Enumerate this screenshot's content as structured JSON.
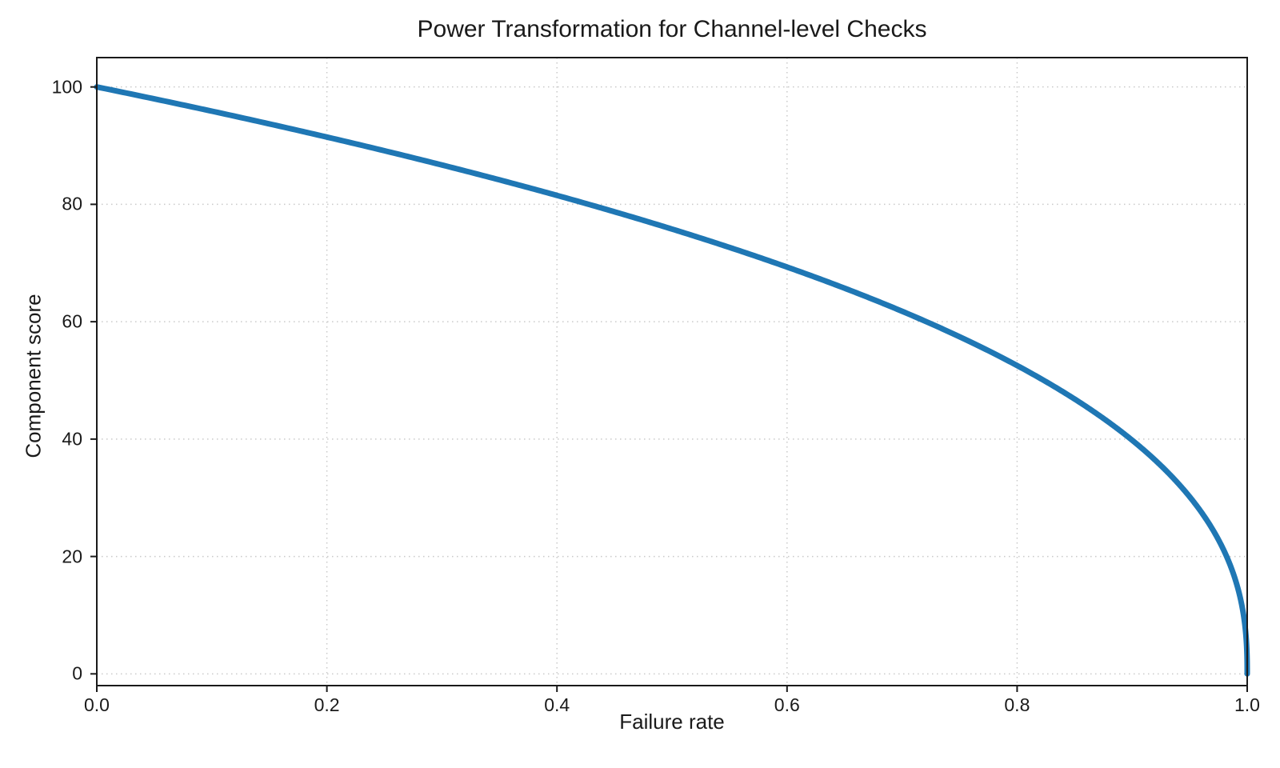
{
  "chart": {
    "title": "Power Transformation for Channel-level Checks",
    "xlabel": "Failure rate",
    "ylabel": "Component score"
  },
  "chart_data": {
    "type": "line",
    "title": "Power Transformation for Channel-level Checks",
    "xlabel": "Failure rate",
    "ylabel": "Component score",
    "xlim": [
      0,
      1
    ],
    "ylim": [
      -2,
      105
    ],
    "x_ticks": [
      "0.0",
      "0.2",
      "0.4",
      "0.6",
      "0.8",
      "1.0"
    ],
    "x_tick_values": [
      0,
      0.2,
      0.4,
      0.6,
      0.8,
      1.0
    ],
    "y_ticks": [
      "0",
      "20",
      "40",
      "60",
      "80",
      "100"
    ],
    "y_tick_values": [
      0,
      20,
      40,
      60,
      80,
      100
    ],
    "grid": "dotted",
    "legend_position": "none",
    "colors": {
      "line": "#1f77b4",
      "grid": "#c9c9c9",
      "spine": "#1a1a1a",
      "text": "#1a1a1a",
      "background": "#ffffff"
    },
    "series": [
      {
        "name": "component-score-curve",
        "color": "#1f77b4",
        "line_width": 7,
        "formula": "y = 100 * (1 - x)^0.4",
        "amplitude": 100,
        "power": 0.4,
        "points": [
          [
            0.0,
            100.0
          ],
          [
            0.05,
            97.97
          ],
          [
            0.1,
            95.87
          ],
          [
            0.15,
            93.71
          ],
          [
            0.2,
            91.46
          ],
          [
            0.25,
            89.13
          ],
          [
            0.3,
            86.7
          ],
          [
            0.35,
            84.17
          ],
          [
            0.4,
            81.51
          ],
          [
            0.45,
            78.74
          ],
          [
            0.5,
            75.79
          ],
          [
            0.55,
            72.66
          ],
          [
            0.6,
            69.31
          ],
          [
            0.65,
            65.71
          ],
          [
            0.7,
            61.77
          ],
          [
            0.75,
            57.43
          ],
          [
            0.8,
            52.53
          ],
          [
            0.85,
            46.82
          ],
          [
            0.9,
            39.81
          ],
          [
            0.95,
            30.17
          ],
          [
            0.98,
            20.91
          ],
          [
            0.99,
            15.85
          ],
          [
            0.995,
            12.01
          ],
          [
            0.999,
            6.31
          ],
          [
            1.0,
            0.0
          ]
        ]
      }
    ]
  }
}
